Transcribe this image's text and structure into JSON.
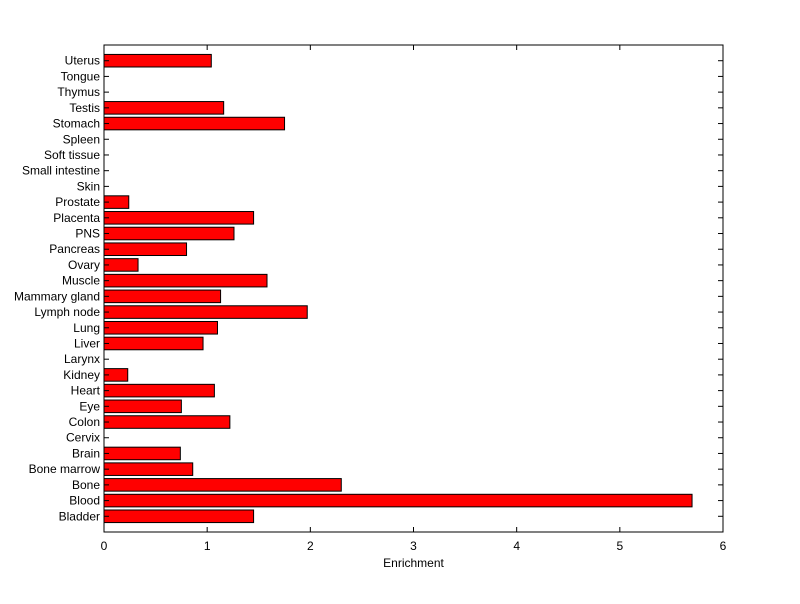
{
  "chart_data": {
    "type": "bar",
    "orientation": "horizontal",
    "title": "",
    "xlabel": "Enrichment",
    "ylabel": "",
    "xlim": [
      0,
      6
    ],
    "xticks": [
      "0",
      "1",
      "2",
      "3",
      "4",
      "5",
      "6"
    ],
    "grid": false,
    "bar_color": "#ff0000",
    "categories": [
      "Bladder",
      "Blood",
      "Bone",
      "Bone marrow",
      "Brain",
      "Cervix",
      "Colon",
      "Eye",
      "Heart",
      "Kidney",
      "Larynx",
      "Liver",
      "Lung",
      "Lymph node",
      "Mammary gland",
      "Muscle",
      "Ovary",
      "Pancreas",
      "PNS",
      "Placenta",
      "Prostate",
      "Skin",
      "Small intestine",
      "Soft tissue",
      "Spleen",
      "Stomach",
      "Testis",
      "Thymus",
      "Tongue",
      "Uterus"
    ],
    "values": [
      1.45,
      5.7,
      2.3,
      0.86,
      0.74,
      0,
      1.22,
      0.75,
      1.07,
      0.23,
      0,
      0.96,
      1.1,
      1.97,
      1.13,
      1.58,
      0.33,
      0.8,
      1.26,
      1.45,
      0.24,
      0,
      0,
      0,
      0,
      1.75,
      1.16,
      0,
      0,
      1.04
    ]
  }
}
